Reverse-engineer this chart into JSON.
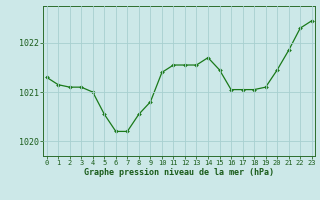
{
  "x": [
    0,
    1,
    2,
    3,
    4,
    5,
    6,
    7,
    8,
    9,
    10,
    11,
    12,
    13,
    14,
    15,
    16,
    17,
    18,
    19,
    20,
    21,
    22,
    23
  ],
  "y": [
    1021.3,
    1021.15,
    1021.1,
    1021.1,
    1021.0,
    1020.55,
    1020.2,
    1020.2,
    1020.55,
    1020.8,
    1021.4,
    1021.55,
    1021.55,
    1021.55,
    1021.7,
    1021.45,
    1021.05,
    1021.05,
    1021.05,
    1021.1,
    1021.45,
    1021.85,
    1022.3,
    1022.45
  ],
  "line_color": "#1a7a1a",
  "marker": "D",
  "marker_size": 2.0,
  "bg_color": "#cce8e8",
  "grid_color": "#a8d0d0",
  "axis_color": "#2d6e2d",
  "label_color": "#1a5c1a",
  "xlabel": "Graphe pression niveau de la mer (hPa)",
  "yticks": [
    1020,
    1021,
    1022
  ],
  "xticks": [
    0,
    1,
    2,
    3,
    4,
    5,
    6,
    7,
    8,
    9,
    10,
    11,
    12,
    13,
    14,
    15,
    16,
    17,
    18,
    19,
    20,
    21,
    22,
    23
  ],
  "ylim": [
    1019.7,
    1022.75
  ],
  "xlim": [
    -0.3,
    23.3
  ]
}
